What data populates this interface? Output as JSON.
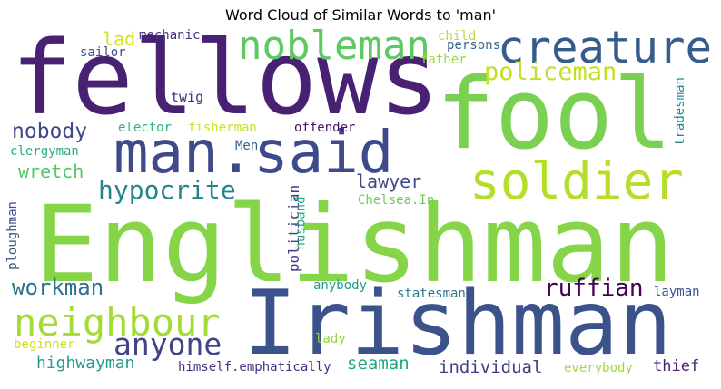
{
  "title": "Word Cloud of Similar Words to 'man'",
  "words": [
    {
      "text": "fellows",
      "color": "#482173"
    },
    {
      "text": "fool",
      "color": "#7ad151"
    },
    {
      "text": "Englishman",
      "color": "#86d549"
    },
    {
      "text": "Irishman",
      "color": "#3b528b"
    },
    {
      "text": "man.said",
      "color": "#3e4a89"
    },
    {
      "text": "creature",
      "color": "#365c8d"
    },
    {
      "text": "nobleman",
      "color": "#5ec962"
    },
    {
      "text": "soldier",
      "color": "#b5de2b"
    },
    {
      "text": "neighbour",
      "color": "#a5db36"
    },
    {
      "text": "policeman",
      "color": "#c2df23"
    },
    {
      "text": "hypocrite",
      "color": "#25858e"
    },
    {
      "text": "anyone",
      "color": "#414487"
    },
    {
      "text": "workman",
      "color": "#2c728e"
    },
    {
      "text": "ruffian",
      "color": "#440154"
    },
    {
      "text": "nobody",
      "color": "#3f4788"
    },
    {
      "text": "wretch",
      "color": "#52c569"
    },
    {
      "text": "lawyer",
      "color": "#3f4889"
    },
    {
      "text": "highwayman",
      "color": "#1f9e89"
    },
    {
      "text": "individual",
      "color": "#433e85"
    },
    {
      "text": "seaman",
      "color": "#21a685"
    },
    {
      "text": "thief",
      "color": "#481f70"
    },
    {
      "text": "lad",
      "color": "#d8e219"
    },
    {
      "text": "mechanic",
      "color": "#46337e"
    },
    {
      "text": "sailor",
      "color": "#3e4c8a"
    },
    {
      "text": "twig",
      "color": "#472c7a"
    },
    {
      "text": "child",
      "color": "#bddf26"
    },
    {
      "text": "persons",
      "color": "#31688e"
    },
    {
      "text": "father",
      "color": "#9fda3a"
    },
    {
      "text": "elector",
      "color": "#2db27d"
    },
    {
      "text": "fisherman",
      "color": "#c8e020"
    },
    {
      "text": "offender",
      "color": "#471164"
    },
    {
      "text": "clergyman",
      "color": "#27ad81"
    },
    {
      "text": "Men",
      "color": "#33638d"
    },
    {
      "text": "Chelsea.In",
      "color": "#6ccd5a"
    },
    {
      "text": "tradesman",
      "color": "#23898e"
    },
    {
      "text": "ploughman",
      "color": "#3b528b"
    },
    {
      "text": "politician",
      "color": "#443983"
    },
    {
      "text": "husband",
      "color": "#25ab82"
    },
    {
      "text": "anybody",
      "color": "#1e9b8a"
    },
    {
      "text": "statesman",
      "color": "#2a778e"
    },
    {
      "text": "layman",
      "color": "#3a548c"
    },
    {
      "text": "beginner",
      "color": "#d0e11c"
    },
    {
      "text": "lady",
      "color": "#90d743"
    },
    {
      "text": "himself.emphatically",
      "color": "#46327e"
    },
    {
      "text": "everybody",
      "color": "#a2da37"
    }
  ]
}
